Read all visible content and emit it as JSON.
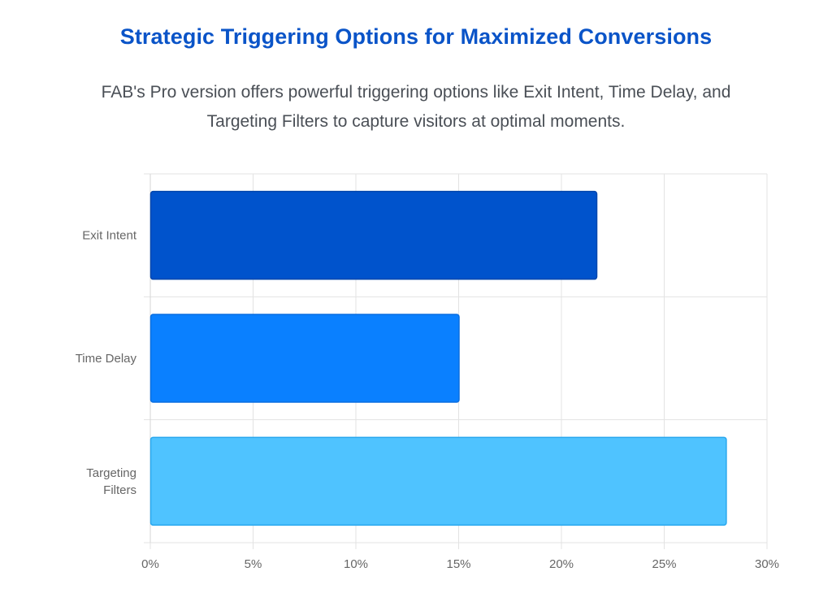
{
  "header": {
    "title": "Strategic Triggering Options for Maximized Conversions",
    "subtitle_line1": "FAB's Pro version offers powerful triggering options like Exit Intent, Time Delay, and",
    "subtitle_line2": "Targeting Filters to capture visitors at optimal moments."
  },
  "chart_data": {
    "type": "bar",
    "orientation": "horizontal",
    "categories": [
      "Exit Intent",
      "Time Delay",
      "Targeting Filters"
    ],
    "category_label_lines": [
      [
        "Exit Intent"
      ],
      [
        "Time Delay"
      ],
      [
        "Targeting",
        "Filters"
      ]
    ],
    "values": [
      21.7,
      15,
      28
    ],
    "colors": [
      "#0053cc",
      "#0a80ff",
      "#4fc3ff"
    ],
    "border_colors": [
      "#0046ad",
      "#0a6ee0",
      "#2aa8ee"
    ],
    "xlim": [
      0,
      30
    ],
    "x_ticks": [
      0,
      5,
      10,
      15,
      20,
      25,
      30
    ],
    "x_tick_labels": [
      "0%",
      "5%",
      "10%",
      "15%",
      "20%",
      "25%",
      "30%"
    ],
    "grid": true,
    "legend": "none",
    "xlabel": "",
    "ylabel": ""
  }
}
